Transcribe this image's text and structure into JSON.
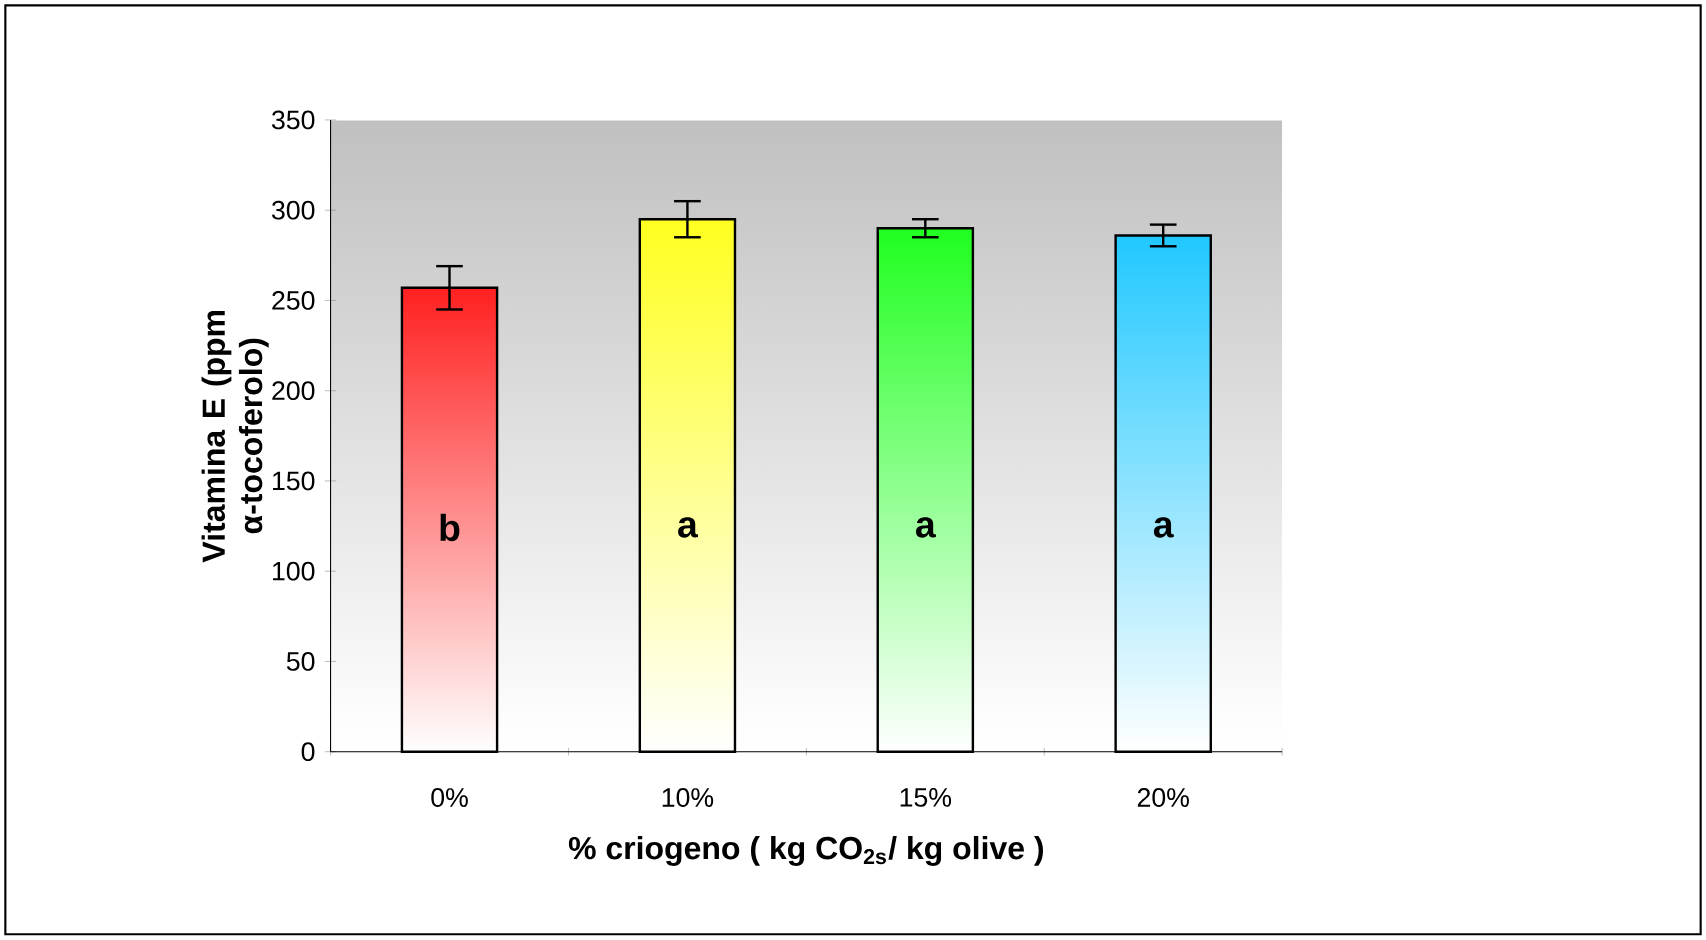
{
  "chart_data": {
    "type": "bar",
    "xlabel": "% criogeno ( kg CO$_{2s}$/ kg olive )",
    "ylabel": "Vitamina E (ppm α-tocoferolo)",
    "categories": [
      "0%",
      "10%",
      "15%",
      "20%"
    ],
    "values": [
      257,
      295,
      290,
      286
    ],
    "errors": [
      12,
      10,
      5,
      6
    ],
    "colors": [
      "#ff2020",
      "#ffff20",
      "#20ff20",
      "#20c8ff"
    ],
    "ylim": [
      0,
      350
    ],
    "yticks": [
      0,
      50,
      100,
      150,
      200,
      250,
      300,
      350
    ],
    "grid": false,
    "annotations": [
      "b",
      "a",
      "a",
      "a"
    ]
  }
}
